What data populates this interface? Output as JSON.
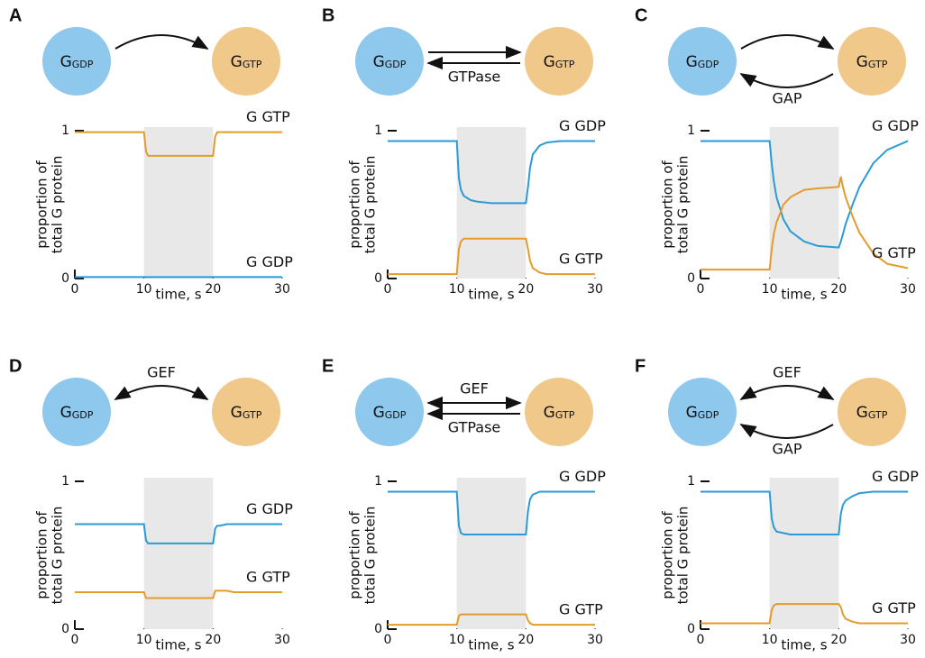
{
  "chart_data": [
    {
      "type": "line",
      "panel": "A",
      "diagram": {
        "nodes": [
          {
            "label": "G",
            "sub": "GDP"
          },
          {
            "label": "G",
            "sub": "GTP"
          }
        ],
        "curved": true,
        "arrows": [
          {
            "kind": "forward"
          }
        ]
      },
      "ylabel": [
        "proportion of",
        "total G protein"
      ],
      "xlabel": "time, s",
      "x": [
        0,
        10,
        10.3,
        10.6,
        11,
        12,
        13,
        15,
        17,
        20,
        20.3,
        20.6,
        21,
        22,
        23,
        25,
        27,
        30
      ],
      "series": [
        {
          "name": "G GTP",
          "color": "#e39c2c",
          "values": [
            0.99,
            0.99,
            0.86,
            0.83,
            0.83,
            0.83,
            0.83,
            0.83,
            0.83,
            0.83,
            0.96,
            0.99,
            0.99,
            0.99,
            0.99,
            0.99,
            0.99,
            0.99
          ]
        },
        {
          "name": "G GDP",
          "color": "#2a9bd6",
          "values": [
            0.01,
            0.01,
            0.01,
            0.01,
            0.01,
            0.01,
            0.01,
            0.01,
            0.01,
            0.01,
            0.01,
            0.01,
            0.01,
            0.01,
            0.01,
            0.01,
            0.01,
            0.01
          ]
        }
      ],
      "shaded_x": [
        10,
        20
      ],
      "xlim": [
        0,
        30
      ],
      "ylim": [
        0,
        1
      ],
      "xticks": [
        0,
        10,
        20,
        30
      ],
      "yticks": [
        0,
        1
      ]
    },
    {
      "type": "line",
      "panel": "B",
      "diagram": {
        "nodes": [
          {
            "label": "G",
            "sub": "GDP"
          },
          {
            "label": "G",
            "sub": "GTP"
          }
        ],
        "curved": false,
        "arrows": [
          {
            "kind": "forward"
          },
          {
            "kind": "backward",
            "label": "GTPase"
          }
        ]
      },
      "ylabel": [
        "proportion of",
        "total G protein"
      ],
      "xlabel": "time, s",
      "x": [
        0,
        10,
        10.3,
        10.6,
        11,
        12,
        13,
        15,
        17,
        20,
        20.3,
        20.6,
        21,
        22,
        23,
        25,
        27,
        30
      ],
      "series": [
        {
          "name": "G GDP",
          "color": "#2a9bd6",
          "values": [
            0.93,
            0.93,
            0.68,
            0.6,
            0.56,
            0.53,
            0.52,
            0.51,
            0.51,
            0.51,
            0.62,
            0.75,
            0.84,
            0.9,
            0.92,
            0.93,
            0.93,
            0.93
          ]
        },
        {
          "name": "G GTP",
          "color": "#e39c2c",
          "values": [
            0.03,
            0.03,
            0.2,
            0.25,
            0.27,
            0.27,
            0.27,
            0.27,
            0.27,
            0.27,
            0.2,
            0.12,
            0.07,
            0.04,
            0.03,
            0.03,
            0.03,
            0.03
          ]
        }
      ],
      "shaded_x": [
        10,
        20
      ],
      "xlim": [
        0,
        30
      ],
      "ylim": [
        0,
        1
      ],
      "xticks": [
        0,
        10,
        20,
        30
      ],
      "yticks": [
        0,
        1
      ]
    },
    {
      "type": "line",
      "panel": "C",
      "diagram": {
        "nodes": [
          {
            "label": "G",
            "sub": "GDP"
          },
          {
            "label": "G",
            "sub": "GTP"
          }
        ],
        "curved": true,
        "arrows": [
          {
            "kind": "forward"
          },
          {
            "kind": "backward",
            "label": "GAP"
          }
        ]
      },
      "ylabel": [
        "proportion of",
        "total G protein"
      ],
      "xlabel": "time, s",
      "x": [
        0,
        10,
        10.3,
        10.6,
        11,
        12,
        13,
        15,
        17,
        20,
        20.3,
        20.6,
        21,
        22,
        23,
        25,
        27,
        30
      ],
      "series": [
        {
          "name": "G GDP",
          "color": "#2a9bd6",
          "values": [
            0.93,
            0.93,
            0.78,
            0.66,
            0.55,
            0.4,
            0.32,
            0.25,
            0.22,
            0.21,
            0.25,
            0.3,
            0.37,
            0.5,
            0.62,
            0.78,
            0.87,
            0.93
          ]
        },
        {
          "name": "G GTP",
          "color": "#e39c2c",
          "values": [
            0.06,
            0.06,
            0.2,
            0.3,
            0.38,
            0.5,
            0.55,
            0.6,
            0.61,
            0.62,
            0.69,
            0.62,
            0.55,
            0.42,
            0.31,
            0.17,
            0.1,
            0.07
          ]
        }
      ],
      "shaded_x": [
        10,
        20
      ],
      "xlim": [
        0,
        30
      ],
      "ylim": [
        0,
        1
      ],
      "xticks": [
        0,
        10,
        20,
        30
      ],
      "yticks": [
        0,
        1
      ]
    },
    {
      "type": "line",
      "panel": "D",
      "diagram": {
        "nodes": [
          {
            "label": "G",
            "sub": "GDP"
          },
          {
            "label": "G",
            "sub": "GTP"
          }
        ],
        "curved": true,
        "arrows": [
          {
            "kind": "both",
            "label": "GEF"
          }
        ]
      },
      "ylabel": [
        "proportion of",
        "total G protein"
      ],
      "xlabel": "time, s",
      "x": [
        0,
        10,
        10.3,
        10.6,
        11,
        12,
        13,
        15,
        17,
        20,
        20.3,
        20.6,
        21,
        22,
        23,
        25,
        27,
        30
      ],
      "series": [
        {
          "name": "G GDP",
          "color": "#2a9bd6",
          "values": [
            0.71,
            0.71,
            0.6,
            0.58,
            0.58,
            0.58,
            0.58,
            0.58,
            0.58,
            0.58,
            0.68,
            0.7,
            0.7,
            0.71,
            0.71,
            0.71,
            0.71,
            0.71
          ]
        },
        {
          "name": "G GTP",
          "color": "#e39c2c",
          "values": [
            0.25,
            0.25,
            0.21,
            0.21,
            0.21,
            0.21,
            0.21,
            0.21,
            0.21,
            0.21,
            0.26,
            0.26,
            0.26,
            0.26,
            0.25,
            0.25,
            0.25,
            0.25
          ]
        }
      ],
      "shaded_x": [
        10,
        20
      ],
      "xlim": [
        0,
        30
      ],
      "ylim": [
        0,
        1
      ],
      "xticks": [
        0,
        10,
        20,
        30
      ],
      "yticks": [
        0,
        1
      ]
    },
    {
      "type": "line",
      "panel": "E",
      "diagram": {
        "nodes": [
          {
            "label": "G",
            "sub": "GDP"
          },
          {
            "label": "G",
            "sub": "GTP"
          }
        ],
        "curved": false,
        "arrows": [
          {
            "kind": "both",
            "label": "GEF"
          },
          {
            "kind": "backward",
            "label": "GTPase"
          }
        ]
      },
      "ylabel": [
        "proportion of",
        "total G protein"
      ],
      "xlabel": "time, s",
      "x": [
        0,
        10,
        10.3,
        10.6,
        11,
        12,
        13,
        15,
        17,
        20,
        20.3,
        20.6,
        21,
        22,
        23,
        25,
        27,
        30
      ],
      "series": [
        {
          "name": "G GDP",
          "color": "#2a9bd6",
          "values": [
            0.93,
            0.93,
            0.7,
            0.65,
            0.64,
            0.64,
            0.64,
            0.64,
            0.64,
            0.64,
            0.8,
            0.88,
            0.91,
            0.93,
            0.93,
            0.93,
            0.93,
            0.93
          ]
        },
        {
          "name": "G GTP",
          "color": "#e39c2c",
          "values": [
            0.03,
            0.03,
            0.09,
            0.1,
            0.1,
            0.1,
            0.1,
            0.1,
            0.1,
            0.1,
            0.06,
            0.04,
            0.03,
            0.03,
            0.03,
            0.03,
            0.03,
            0.03
          ]
        }
      ],
      "shaded_x": [
        10,
        20
      ],
      "xlim": [
        0,
        30
      ],
      "ylim": [
        0,
        1
      ],
      "xticks": [
        0,
        10,
        20,
        30
      ],
      "yticks": [
        0,
        1
      ]
    },
    {
      "type": "line",
      "panel": "F",
      "diagram": {
        "nodes": [
          {
            "label": "G",
            "sub": "GDP"
          },
          {
            "label": "G",
            "sub": "GTP"
          }
        ],
        "curved": true,
        "arrows": [
          {
            "kind": "both",
            "label": "GEF"
          },
          {
            "kind": "backward",
            "label": "GAP"
          }
        ]
      },
      "ylabel": [
        "proportion of",
        "total G protein"
      ],
      "xlabel": "time, s",
      "x": [
        0,
        10,
        10.3,
        10.6,
        11,
        12,
        13,
        15,
        17,
        20,
        20.3,
        20.6,
        21,
        22,
        23,
        25,
        27,
        30
      ],
      "series": [
        {
          "name": "G GDP",
          "color": "#2a9bd6",
          "values": [
            0.93,
            0.93,
            0.75,
            0.69,
            0.66,
            0.65,
            0.64,
            0.64,
            0.64,
            0.64,
            0.78,
            0.84,
            0.87,
            0.9,
            0.92,
            0.93,
            0.93,
            0.93
          ]
        },
        {
          "name": "G GTP",
          "color": "#e39c2c",
          "values": [
            0.04,
            0.04,
            0.13,
            0.16,
            0.17,
            0.17,
            0.17,
            0.17,
            0.17,
            0.17,
            0.15,
            0.1,
            0.07,
            0.05,
            0.04,
            0.04,
            0.04,
            0.04
          ]
        }
      ],
      "shaded_x": [
        10,
        20
      ],
      "xlim": [
        0,
        30
      ],
      "ylim": [
        0,
        1
      ],
      "xticks": [
        0,
        10,
        20,
        30
      ],
      "yticks": [
        0,
        1
      ]
    }
  ]
}
